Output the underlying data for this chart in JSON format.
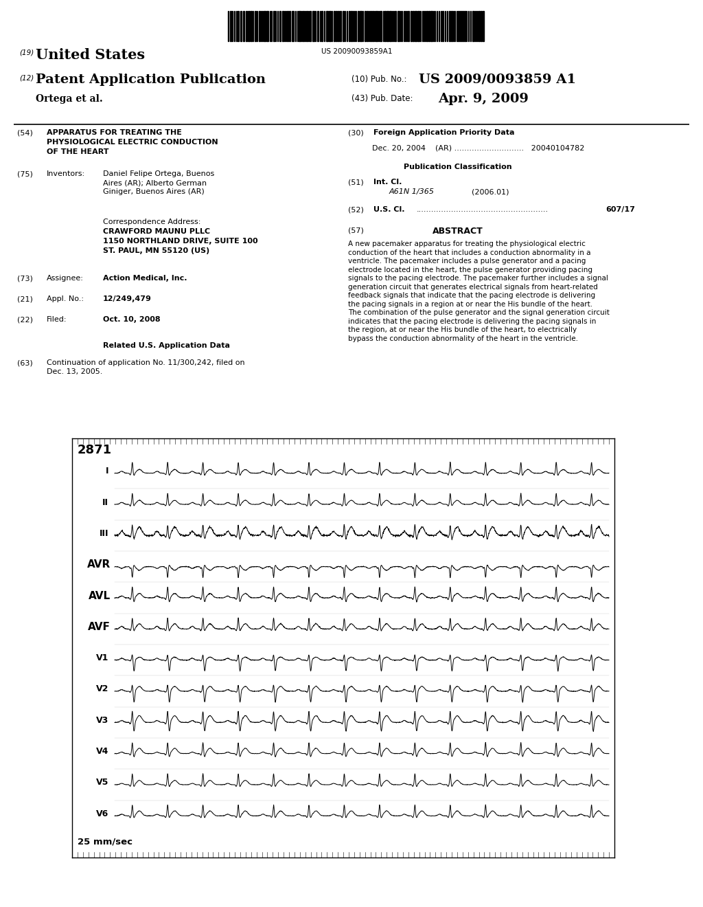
{
  "bg_color": "#ffffff",
  "barcode_text": "US 20090093859A1",
  "header_line1_num": "(19)",
  "header_line1_text": "United States",
  "header_line2_num": "(12)",
  "header_line2_text": "Patent Application Publication",
  "header_right1_num": "(10)",
  "header_right1_label": "Pub. No.:",
  "header_right1_val": "US 2009/0093859 A1",
  "header_right2_num": "(43)",
  "header_right2_label": "Pub. Date:",
  "header_right2_val": "Apr. 9, 2009",
  "header_author": "Ortega et al.",
  "field54_num": "(54)",
  "field54_text": "APPARATUS FOR TREATING THE\nPHYSIOLOGICAL ELECTRIC CONDUCTION\nOF THE HEART",
  "field75_num": "(75)",
  "field75_label": "Inventors:",
  "field75_text": "Daniel Felipe Ortega, Buenos\nAires (AR); Alberto German\nGiniger, Buenos Aires (AR)",
  "corr_label": "Correspondence Address:",
  "corr_line1": "CRAWFORD MAUNU PLLC",
  "corr_line2": "1150 NORTHLAND DRIVE, SUITE 100",
  "corr_line3": "ST. PAUL, MN 55120 (US)",
  "field73_num": "(73)",
  "field73_label": "Assignee:",
  "field73_text": "Action Medical, Inc.",
  "field21_num": "(21)",
  "field21_label": "Appl. No.:",
  "field21_text": "12/249,479",
  "field22_num": "(22)",
  "field22_label": "Filed:",
  "field22_text": "Oct. 10, 2008",
  "related_header": "Related U.S. Application Data",
  "field63_num": "(63)",
  "field63_text": "Continuation of application No. 11/300,242, filed on\nDec. 13, 2005.",
  "field30_num": "(30)",
  "field30_header": "Foreign Application Priority Data",
  "field30_entry": "Dec. 20, 2004    (AR) ............................   20040104782",
  "pub_class_header": "Publication Classification",
  "field51_num": "(51)",
  "field51_label": "Int. Cl.",
  "field51_class": "A61N 1/365",
  "field51_year": "(2006.01)",
  "field52_num": "(52)",
  "field52_label": "U.S. Cl.",
  "field52_dots": ".....................................................",
  "field52_val": "607/17",
  "field57_num": "(57)",
  "field57_header": "ABSTRACT",
  "abstract_text": "A new pacemaker apparatus for treating the physiological electric conduction of the heart that includes a conduction abnormality in a ventricle. The pacemaker includes a pulse generator and a pacing electrode located in the heart, the pulse generator providing pacing signals to the pacing electrode. The pacemaker further includes a signal generation circuit that generates electrical signals from heart-related feedback signals that indicate that the pacing electrode is delivering the pacing signals in a region at or near the His bundle of the heart. The combination of the pulse generator and the signal generation circuit indicates that the pacing electrode is delivering the pacing signals in the region, at or near the His bundle of the heart, to electrically bypass the conduction abnormality of the heart in the ventricle.",
  "ecg_label": "2871",
  "ecg_speed": "25 mm/sec",
  "ecg_leads": [
    "I",
    "II",
    "III",
    "AVR",
    "AVL",
    "AVF",
    "V1",
    "V2",
    "V3",
    "V4",
    "V5",
    "V6"
  ],
  "n_beats": 14,
  "fig_width": 10.24,
  "fig_height": 13.2,
  "dpi": 100
}
